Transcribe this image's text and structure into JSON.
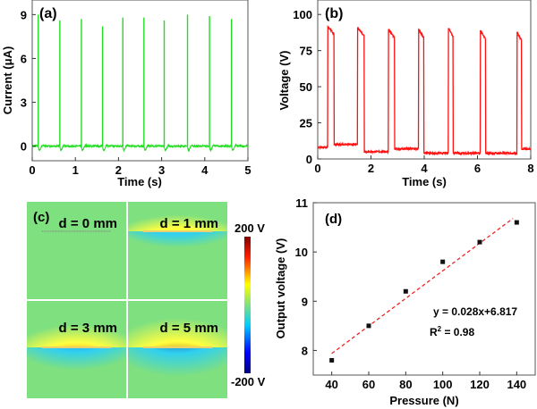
{
  "chart_data": [
    {
      "panel_label": "(a)",
      "type": "line",
      "xlabel": "Time (s)",
      "ylabel": "Current (μA)",
      "xlim": [
        0,
        5
      ],
      "ylim": [
        -1,
        10
      ],
      "xticks": [
        "0",
        "1",
        "2",
        "3",
        "4",
        "5"
      ],
      "yticks": [
        "0",
        "3",
        "6",
        "9"
      ],
      "color": "#22dd22",
      "baseline": 0,
      "spikes": [
        {
          "t": 0.14,
          "peak": 9.0
        },
        {
          "t": 0.64,
          "peak": 8.6
        },
        {
          "t": 1.14,
          "peak": 8.7
        },
        {
          "t": 1.63,
          "peak": 8.2
        },
        {
          "t": 2.1,
          "peak": 8.8
        },
        {
          "t": 2.59,
          "peak": 8.8
        },
        {
          "t": 3.06,
          "peak": 8.6
        },
        {
          "t": 3.6,
          "peak": 9.0
        },
        {
          "t": 4.11,
          "peak": 8.9
        },
        {
          "t": 4.62,
          "peak": 8.7
        }
      ]
    },
    {
      "panel_label": "(b)",
      "type": "line",
      "xlabel": "Time (s)",
      "ylabel": "Voltage (V)",
      "xlim": [
        0,
        8
      ],
      "ylim": [
        0,
        110
      ],
      "xticks": [
        "0",
        "2",
        "4",
        "6",
        "8"
      ],
      "yticks": [
        "0",
        "25",
        "50",
        "75",
        "100"
      ],
      "color": "#ff1111",
      "pulses": [
        {
          "start": 0.38,
          "end": 0.62,
          "high": 92
        },
        {
          "start": 1.5,
          "end": 1.75,
          "high": 91
        },
        {
          "start": 2.65,
          "end": 2.88,
          "high": 90
        },
        {
          "start": 3.78,
          "end": 3.98,
          "high": 90
        },
        {
          "start": 4.9,
          "end": 5.08,
          "high": 91
        },
        {
          "start": 6.1,
          "end": 6.3,
          "high": 89
        },
        {
          "start": 7.48,
          "end": 7.65,
          "high": 88
        }
      ],
      "baselines": [
        8,
        10,
        5,
        7,
        4,
        4,
        4,
        7
      ]
    },
    {
      "panel_label": "(c)",
      "type": "heatmap",
      "colorbar": {
        "max_label": "200 V",
        "min_label": "-200 V",
        "max": 200,
        "min": -200
      },
      "maps": [
        {
          "label": "d = 0 mm",
          "d": 0
        },
        {
          "label": "d = 1 mm",
          "d": 1
        },
        {
          "label": "d = 3 mm",
          "d": 3
        },
        {
          "label": "d = 5 mm",
          "d": 5
        }
      ]
    },
    {
      "panel_label": "(d)",
      "type": "scatter",
      "xlabel": "Pressure (N)",
      "ylabel": "Output voltage (V)",
      "xlim": [
        30,
        150
      ],
      "ylim": [
        7.5,
        11
      ],
      "xticks": [
        "40",
        "60",
        "80",
        "100",
        "120",
        "140"
      ],
      "yticks": [
        "8",
        "9",
        "10",
        "11"
      ],
      "points": [
        [
          40,
          7.8
        ],
        [
          60,
          8.5
        ],
        [
          80,
          9.2
        ],
        [
          100,
          9.8
        ],
        [
          120,
          10.2
        ],
        [
          140,
          10.6
        ]
      ],
      "fit": {
        "slope": 0.028,
        "intercept": 6.817,
        "range": [
          40,
          138
        ],
        "color": "#ee2222"
      },
      "equation": "y = 0.028x+6.817",
      "r2_prefix": "R",
      "r2_sup": "2",
      "r2_value": " = 0.98"
    }
  ]
}
